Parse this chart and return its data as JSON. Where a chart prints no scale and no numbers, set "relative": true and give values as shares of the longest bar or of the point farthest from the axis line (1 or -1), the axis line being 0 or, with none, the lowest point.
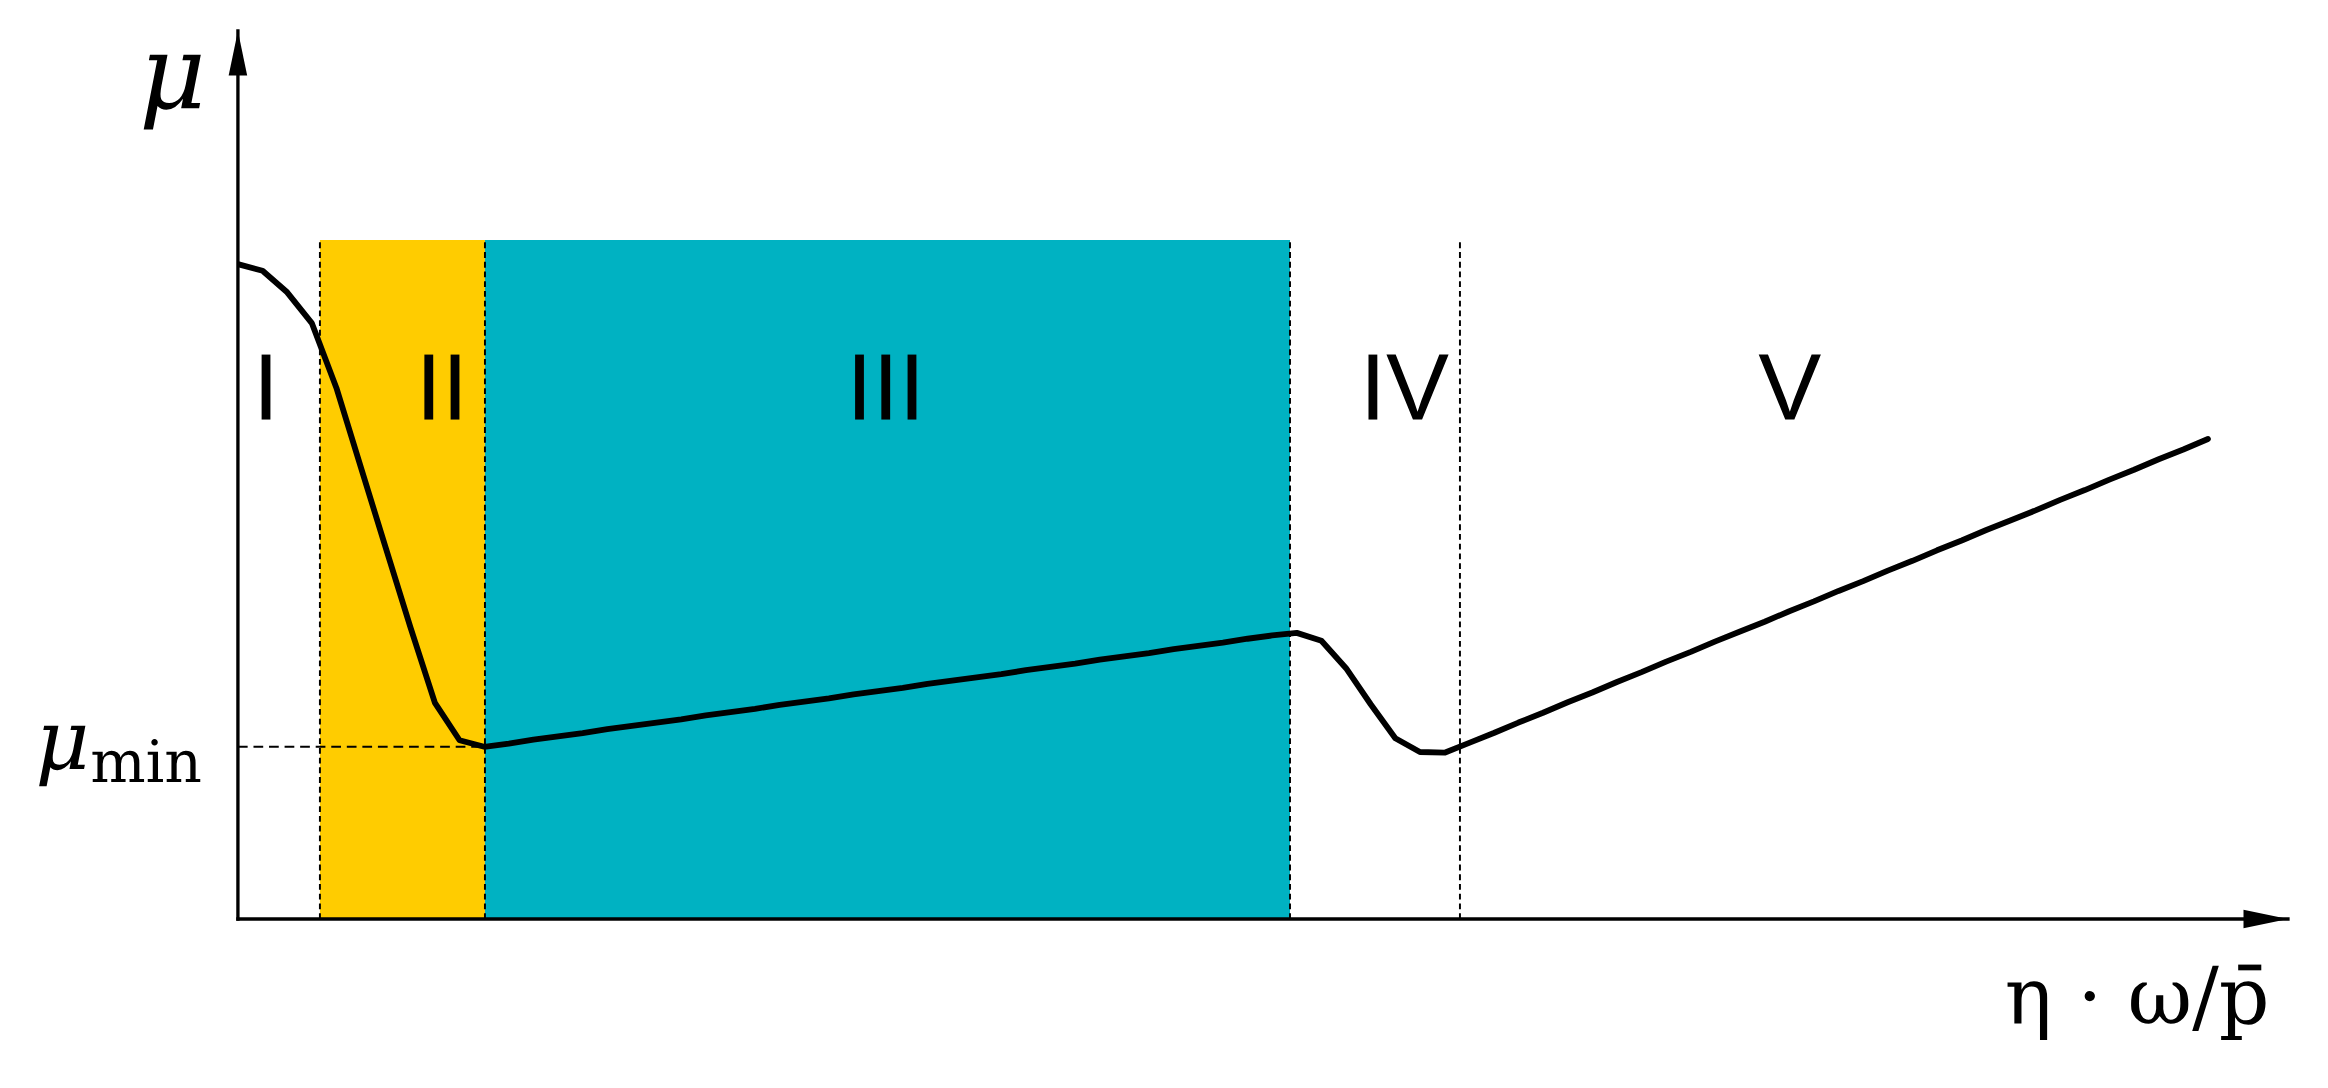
{
  "chart_data": {
    "type": "line",
    "relative": true,
    "xlabel": "η · ω/p̄",
    "ylabel": "μ",
    "categories": [
      null,
      null,
      null,
      null,
      null,
      null,
      null,
      null,
      null,
      null,
      null,
      null,
      null,
      null,
      null,
      null,
      null,
      null,
      null,
      null,
      null,
      null,
      null,
      null,
      null,
      null,
      null,
      null,
      null,
      null,
      null,
      null,
      null,
      null,
      null,
      null,
      null,
      null,
      null,
      null,
      null,
      null,
      null,
      null,
      null,
      null,
      null,
      null,
      null,
      null,
      null,
      null,
      null,
      null,
      null,
      null,
      null,
      null,
      null,
      null,
      null,
      null,
      null,
      null,
      null,
      null,
      null,
      null,
      null,
      null,
      null,
      null,
      null,
      null,
      null,
      null,
      null,
      null,
      null,
      null,
      null
    ],
    "series": [
      {
        "color": "#000000",
        "values": [
          1.0,
          0.99,
          0.957,
          0.91,
          0.811,
          0.689,
          0.567,
          0.446,
          0.33,
          0.273,
          0.263,
          0.268,
          0.274,
          0.279,
          0.284,
          0.29,
          0.295,
          0.3,
          0.305,
          0.311,
          0.316,
          0.321,
          0.327,
          0.332,
          0.337,
          0.343,
          0.348,
          0.353,
          0.359,
          0.364,
          0.369,
          0.374,
          0.38,
          0.385,
          0.39,
          0.396,
          0.401,
          0.406,
          0.412,
          0.417,
          0.422,
          0.428,
          0.433,
          0.437,
          0.425,
          0.383,
          0.328,
          0.276,
          0.255,
          0.254,
          0.269,
          0.284,
          0.3,
          0.315,
          0.331,
          0.346,
          0.362,
          0.377,
          0.393,
          0.408,
          0.424,
          0.439,
          0.454,
          0.47,
          0.485,
          0.501,
          0.516,
          0.532,
          0.547,
          0.563,
          0.578,
          0.594,
          0.609,
          0.624,
          0.64,
          0.655,
          0.671,
          0.686,
          0.702,
          0.717,
          0.733
        ]
      }
    ],
    "annotations": [
      "I",
      "II",
      "III",
      "IV",
      "V"
    ],
    "ref_lines": [
      {
        "axis": "y",
        "value": 0.263,
        "label": "μ$_{min}$",
        "line_style": "dashed",
        "color": "#000000"
      }
    ]
  }
}
